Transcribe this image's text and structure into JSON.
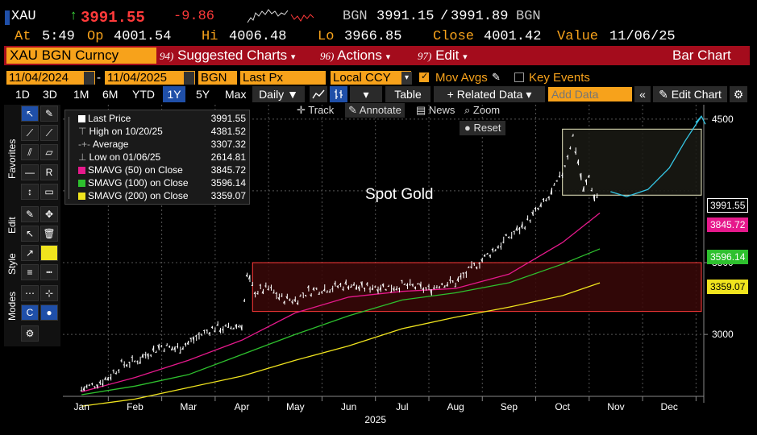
{
  "header": {
    "ticker": "XAU",
    "arrow": "↑",
    "last": "3991.55",
    "change": "-9.86",
    "source": "BGN",
    "bid": "3991.15",
    "ask": "3991.89",
    "source2": "BGN",
    "at_label": "At",
    "time": "5:49",
    "op_label": "Op",
    "open": "4001.54",
    "hi_label": "Hi",
    "high": "4006.48",
    "lo_label": "Lo",
    "low": "3966.85",
    "close_label": "Close",
    "close": "4001.42",
    "value_label": "Value",
    "value_date": "11/06/25"
  },
  "menubar": {
    "security": "XAU BGN Curncy",
    "suggested_num": "94)",
    "suggested": "Suggested Charts",
    "actions_num": "96)",
    "actions": "Actions",
    "edit_num": "97)",
    "edit": "Edit",
    "view": "Bar Chart"
  },
  "params": {
    "start_date": "11/04/2024",
    "dash": "-",
    "end_date": "11/04/2025",
    "source": "BGN",
    "field": "Last Px",
    "currency": "Local CCY",
    "mov_avgs": "Mov Avgs",
    "key_events": "Key Events"
  },
  "toolbar": {
    "ranges": [
      "1D",
      "3D",
      "1M",
      "6M",
      "YTD",
      "1Y",
      "5Y",
      "Max"
    ],
    "selected_range": "1Y",
    "periodicity": "Daily",
    "table": "Table",
    "related": "+ Related Data",
    "add_data_placeholder": "Add Data",
    "edit_chart": "Edit Chart"
  },
  "side_tabs": {
    "favorites": "Favorites",
    "edit": "Edit",
    "style": "Style",
    "modes": "Modes"
  },
  "chart_tools": {
    "track": "Track",
    "annotate": "Annotate",
    "news": "News",
    "zoom": "Zoom",
    "reset": "Reset"
  },
  "legend": [
    {
      "label": "Last Price",
      "value": "3991.55",
      "color": "#ffffff",
      "icon": "square"
    },
    {
      "label": "High on 10/20/25",
      "value": "4381.52",
      "color": "#aaaaaa",
      "icon": "high-marker"
    },
    {
      "label": "Average",
      "value": "3307.32",
      "color": "#aaaaaa",
      "icon": "average-line"
    },
    {
      "label": "Low on 01/06/25",
      "value": "2614.81",
      "color": "#aaaaaa",
      "icon": "low-marker"
    },
    {
      "label": "SMAVG (50)  on Close",
      "value": "3845.72",
      "color": "#e6198c",
      "icon": "square"
    },
    {
      "label": "SMAVG (100)  on Close",
      "value": "3596.14",
      "color": "#2ec02e",
      "icon": "square"
    },
    {
      "label": "SMAVG (200)  on Close",
      "value": "3359.07",
      "color": "#f0e41e",
      "icon": "square"
    }
  ],
  "annotation": "Spot Gold",
  "price_tags": [
    {
      "value": "3991.55",
      "bg": "#000000",
      "fg": "#ffffff",
      "border": "#ffffff"
    },
    {
      "value": "3845.72",
      "bg": "#e6198c",
      "fg": "#ffffff",
      "border": "#e6198c"
    },
    {
      "value": "3596.14",
      "bg": "#2ec02e",
      "fg": "#ffffff",
      "border": "#2ec02e"
    },
    {
      "value": "3359.07",
      "bg": "#f0e41e",
      "fg": "#000000",
      "border": "#f0e41e"
    }
  ],
  "chart_data": {
    "type": "line",
    "x_ticks": [
      "Jan",
      "Feb",
      "Mar",
      "Apr",
      "May",
      "Jun",
      "Jul",
      "Aug",
      "Sep",
      "Oct",
      "Nov",
      "Dec"
    ],
    "x_year": "2025",
    "y_ticks": [
      3000,
      3500,
      4500
    ],
    "ylim": [
      2580,
      4600
    ],
    "grid": true,
    "colors": {
      "price": "#ffffff",
      "sma50": "#e6198c",
      "sma100": "#2ec02e",
      "sma200": "#f0e41e",
      "forecast": "#35c7e6"
    },
    "series": [
      {
        "name": "Last Price",
        "x": [
          0.0,
          0.25,
          0.5,
          0.75,
          1.0,
          1.25,
          1.5,
          1.75,
          2.0,
          2.25,
          2.5,
          2.75,
          3.0,
          3.1,
          3.25,
          3.5,
          3.75,
          4.0,
          4.25,
          4.5,
          4.75,
          5.0,
          5.25,
          5.5,
          5.75,
          6.0,
          6.25,
          6.5,
          6.75,
          7.0,
          7.25,
          7.5,
          7.75,
          8.0,
          8.25,
          8.5,
          8.75,
          9.0,
          9.1,
          9.2,
          9.3,
          9.4,
          9.5,
          9.6,
          9.7
        ],
        "y": [
          2620,
          2650,
          2700,
          2790,
          2810,
          2870,
          2920,
          2900,
          2940,
          3000,
          3050,
          3040,
          3070,
          3400,
          3300,
          3320,
          3250,
          3240,
          3300,
          3320,
          3330,
          3350,
          3320,
          3340,
          3330,
          3340,
          3330,
          3310,
          3360,
          3360,
          3440,
          3520,
          3600,
          3680,
          3750,
          3850,
          3950,
          4120,
          4250,
          4381,
          4200,
          4000,
          4100,
          3950,
          3991
        ]
      },
      {
        "name": "SMAVG (50)",
        "x": [
          0,
          1,
          2,
          3,
          4,
          5,
          6,
          7,
          8,
          9,
          9.7
        ],
        "y": [
          2600,
          2700,
          2820,
          2960,
          3150,
          3260,
          3300,
          3320,
          3420,
          3640,
          3846
        ]
      },
      {
        "name": "SMAVG (100)",
        "x": [
          0,
          1,
          2,
          3,
          4,
          5,
          6,
          7,
          8,
          9,
          9.7
        ],
        "y": [
          2580,
          2640,
          2720,
          2860,
          3000,
          3130,
          3240,
          3290,
          3360,
          3490,
          3596
        ]
      },
      {
        "name": "SMAVG (200)",
        "x": [
          0,
          1,
          2,
          3,
          4,
          5,
          6,
          7,
          8,
          9,
          9.7
        ],
        "y": [
          2500,
          2550,
          2630,
          2710,
          2820,
          2920,
          3040,
          3120,
          3190,
          3270,
          3359
        ]
      },
      {
        "name": "Forecast",
        "x": [
          9.9,
          10.2,
          10.6,
          11.0,
          11.3,
          11.6
        ],
        "y": [
          3995,
          3960,
          4010,
          4160,
          4350,
          4520
        ]
      }
    ],
    "zones": [
      {
        "x0": 3.2,
        "x1": 12.0,
        "y0": 3160,
        "y1": 3500,
        "fill": "#3a0808",
        "stroke": "#ff3a3a"
      },
      {
        "x0": 9.0,
        "x1": 12.0,
        "y0": 3970,
        "y1": 4430,
        "fill": "#1a1a14",
        "stroke": "#e8e8c0"
      }
    ]
  }
}
